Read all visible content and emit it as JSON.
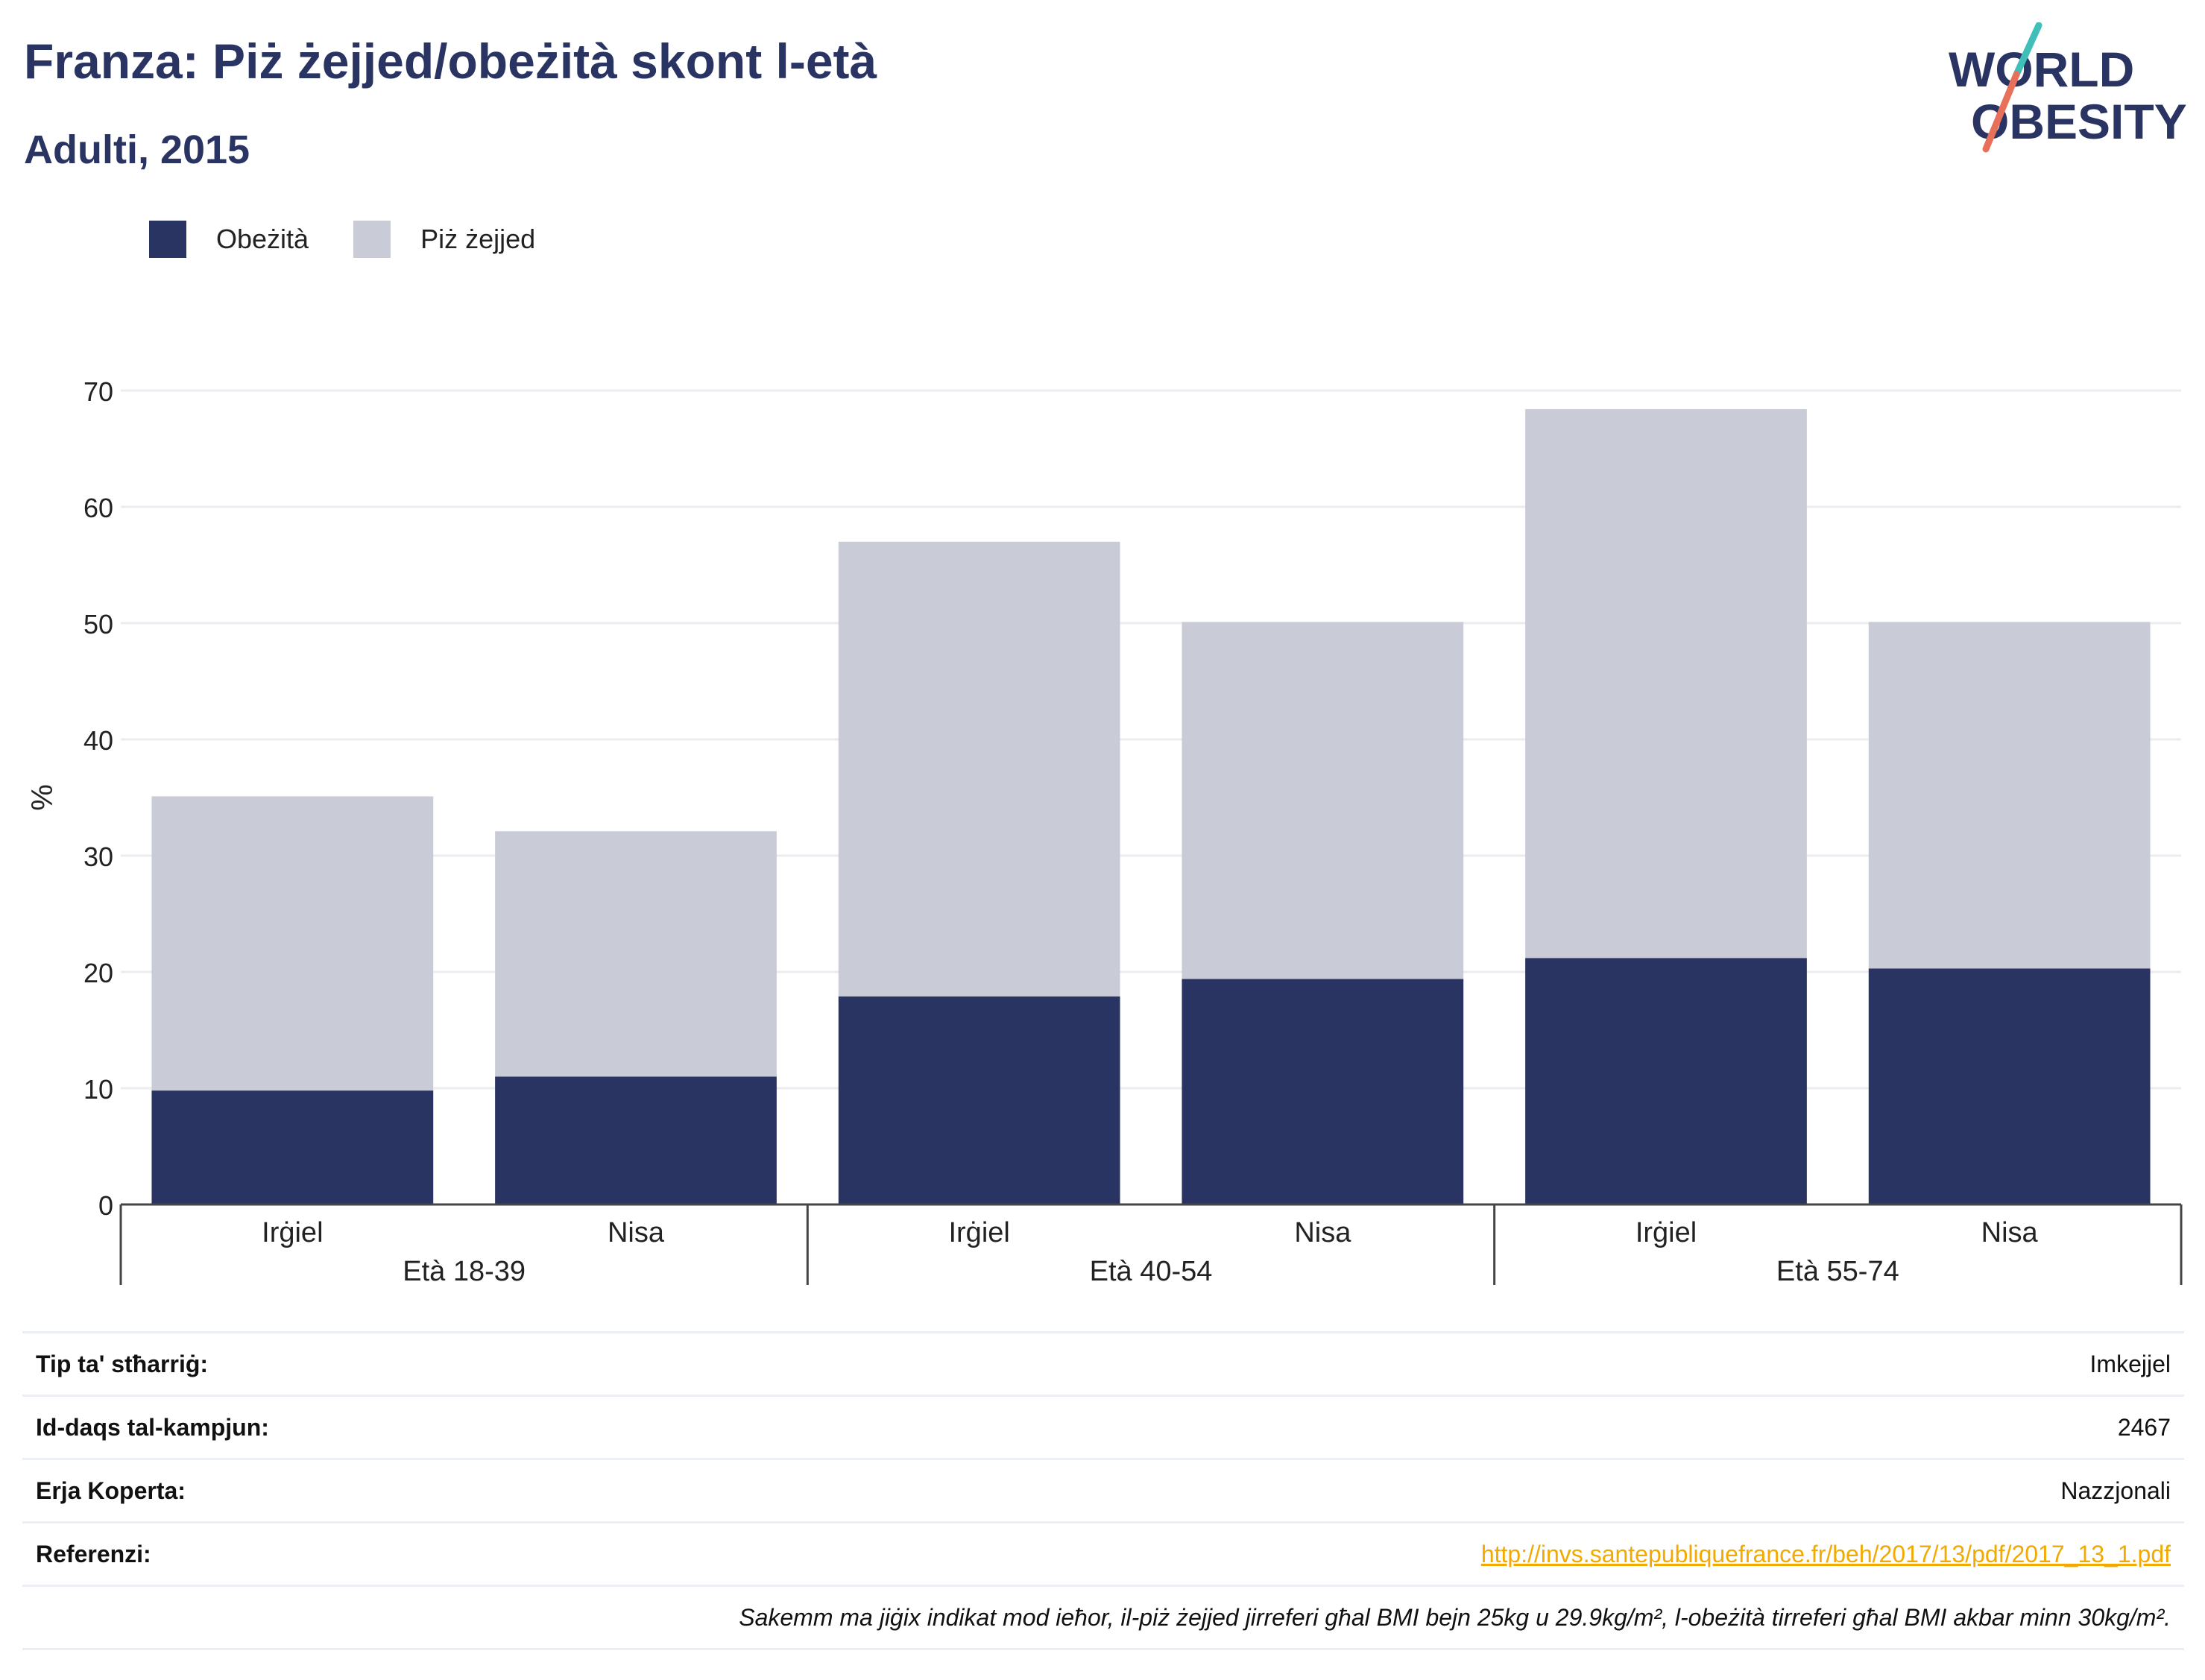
{
  "header": {
    "title": "Franza: Piż żejjed/obeżità skont l-età",
    "subtitle": "Adulti, 2015",
    "logo_line1": "WORLD",
    "logo_line2": "OBESITY"
  },
  "colors": {
    "obesity": "#293462",
    "overweight": "#c9cbd7",
    "text": "#293462",
    "grid": "#ebecf1",
    "link": "#f2a900"
  },
  "chart_data": {
    "type": "bar",
    "stacked": true,
    "ylabel": "%",
    "ylim": [
      0,
      70
    ],
    "yticks": [
      0,
      10,
      20,
      30,
      40,
      50,
      60,
      70
    ],
    "categories": [
      "Irġiel",
      "Nisa",
      "Irġiel",
      "Nisa",
      "Irġiel",
      "Nisa"
    ],
    "groups": [
      {
        "label": "Età 18-39",
        "span": [
          0,
          1
        ]
      },
      {
        "label": "Età 40-54",
        "span": [
          2,
          3
        ]
      },
      {
        "label": "Età 55-74",
        "span": [
          4,
          5
        ]
      }
    ],
    "series": [
      {
        "name": "Obeżità",
        "values": [
          9.8,
          11.0,
          17.9,
          19.4,
          21.2,
          20.3
        ]
      },
      {
        "name": "Piż żejjed",
        "values": [
          25.3,
          21.1,
          39.1,
          30.7,
          47.2,
          29.8
        ]
      }
    ],
    "legend_position": "top-left",
    "grid": true
  },
  "meta": {
    "rows": [
      {
        "label": "Tip ta' stħarriġ:",
        "value": "Imkejjel"
      },
      {
        "label": "Id-daqs tal-kampjun:",
        "value": "2467"
      },
      {
        "label": "Erja Koperta:",
        "value": "Nazzjonali"
      },
      {
        "label": "Referenzi:",
        "value": "http://invs.santepubliquefrance.fr/beh/2017/13/pdf/2017_13_1.pdf"
      }
    ],
    "note": "Sakemm ma jiġix indikat mod ieħor, il-piż żejjed jirreferi għal BMI bejn 25kg u 29.9kg/m², l-obeżità tirreferi għal BMI akbar minn 30kg/m²."
  }
}
